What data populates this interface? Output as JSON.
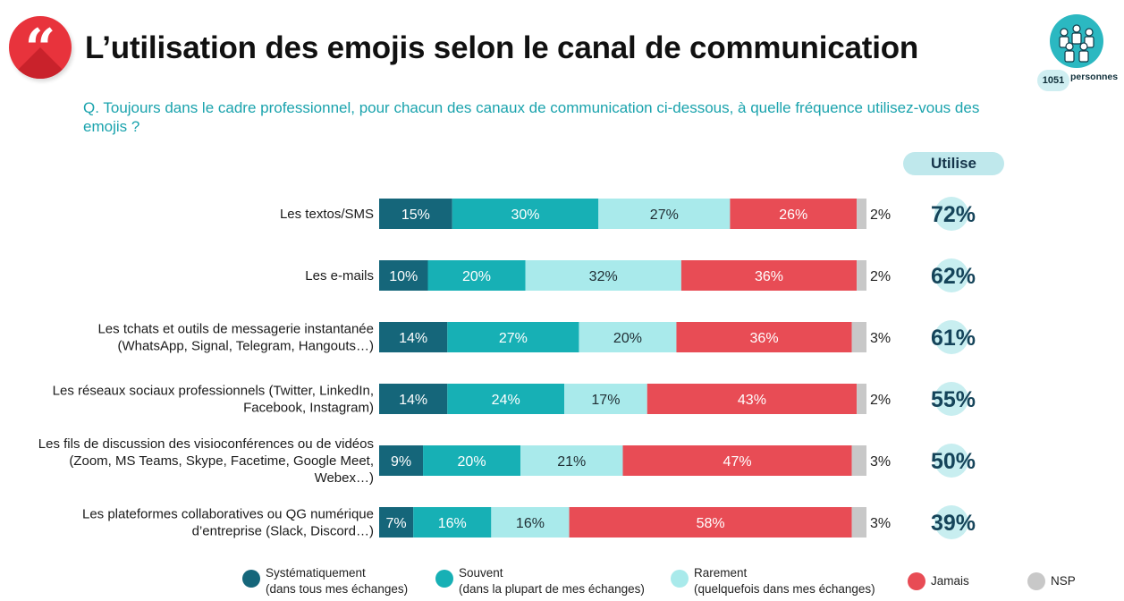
{
  "title": "L’utilisation des emojis selon le canal de communication",
  "sample": {
    "count": "1051",
    "unit": "personnes"
  },
  "question": "Q. Toujours dans le cadre professionnel, pour chacun des canaux de communication ci-dessous, à quelle fréquence utilisez-vous des emojis ?",
  "colors": {
    "systematiquement": "#15667a",
    "souvent": "#17b0b5",
    "rarement": "#a9eaeb",
    "jamais": "#e84c55",
    "nsp": "#c8c8c8",
    "utilise_circle": "#c8eef0",
    "utilise_text": "#15445a"
  },
  "legend": [
    {
      "key": "systematiquement",
      "label": "Systématiquement",
      "sublabel": "(dans tous mes échanges)"
    },
    {
      "key": "souvent",
      "label": "Souvent",
      "sublabel": "(dans la plupart de mes échanges)"
    },
    {
      "key": "rarement",
      "label": "Rarement",
      "sublabel": "(quelquefois dans mes échanges)"
    },
    {
      "key": "jamais",
      "label": "Jamais",
      "sublabel": ""
    },
    {
      "key": "nsp",
      "label": "NSP",
      "sublabel": ""
    }
  ],
  "chart_data": {
    "type": "bar",
    "orientation": "horizontal",
    "stacked": true,
    "unit": "%",
    "categories": [
      [
        "Les textos/SMS"
      ],
      [
        "Les e-mails"
      ],
      [
        "Les tchats et outils de messagerie instantanée",
        "(WhatsApp, Signal, Telegram, Hangouts…)"
      ],
      [
        "Les réseaux sociaux professionnels (Twitter, LinkedIn,",
        "Facebook, Instagram)"
      ],
      [
        "Les fils de discussion des visioconférences ou de vidéos",
        "(Zoom, MS Teams, Skype, Facetime, Google Meet,",
        "Webex…)"
      ],
      [
        "Les plateformes collaboratives ou QG numérique",
        "d’entreprise (Slack, Discord…)"
      ]
    ],
    "series": [
      {
        "name": "Systématiquement",
        "values": [
          15,
          10,
          14,
          14,
          9,
          7
        ]
      },
      {
        "name": "Souvent",
        "values": [
          30,
          20,
          27,
          24,
          20,
          16
        ]
      },
      {
        "name": "Rarement",
        "values": [
          27,
          32,
          20,
          17,
          21,
          16
        ]
      },
      {
        "name": "Jamais",
        "values": [
          26,
          36,
          36,
          43,
          47,
          58
        ]
      },
      {
        "name": "NSP",
        "values": [
          2,
          2,
          3,
          2,
          3,
          3
        ]
      }
    ],
    "utilise_label": "Utilise",
    "utilise": [
      72,
      62,
      61,
      55,
      50,
      39
    ]
  }
}
